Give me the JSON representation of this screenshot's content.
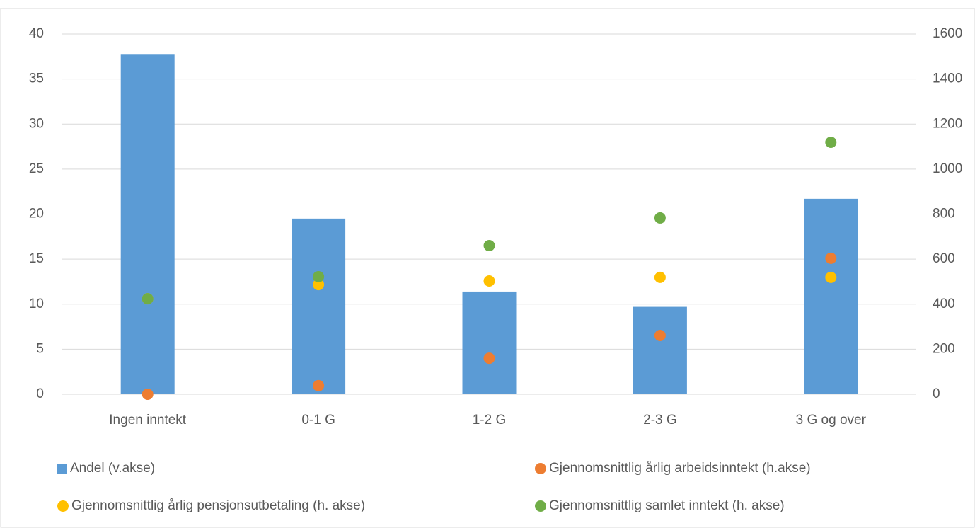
{
  "chart_data": {
    "type": "bar",
    "categories": [
      "Ingen inntekt",
      "0-1 G",
      "1-2 G",
      "2-3 G",
      "3 G og over"
    ],
    "series": [
      {
        "name": "Andel (v.akse)",
        "type": "bar",
        "color": "#5b9bd5",
        "values": [
          37.7,
          19.5,
          11.4,
          9.7,
          21.7
        ]
      },
      {
        "name": "Gjennomsnittlig årlig arbeidsinntekt (h.akse)",
        "type": "scatter",
        "axis": "y2",
        "color": "#ed7d31",
        "values": [
          0,
          38,
          160,
          261,
          604
        ]
      },
      {
        "name": "Gjennomsnittlig årlig pensjonsutbetaling (h. akse)",
        "type": "scatter",
        "axis": "y2",
        "color": "#ffc000",
        "values": [
          424,
          487,
          503,
          519,
          519
        ]
      },
      {
        "name": "Gjennomsnittlig samlet inntekt (h. akse)",
        "type": "scatter",
        "axis": "y2",
        "color": "#70ad47",
        "values": [
          424,
          522,
          660,
          783,
          1119
        ]
      }
    ],
    "ylim": [
      0,
      40
    ],
    "yticks": [
      0,
      5,
      10,
      15,
      20,
      25,
      30,
      35,
      40
    ],
    "y2lim": [
      0,
      1600
    ],
    "y2ticks": [
      0,
      200,
      400,
      600,
      800,
      1000,
      1200,
      1400,
      1600
    ],
    "grid": true,
    "legend": "bottom"
  }
}
